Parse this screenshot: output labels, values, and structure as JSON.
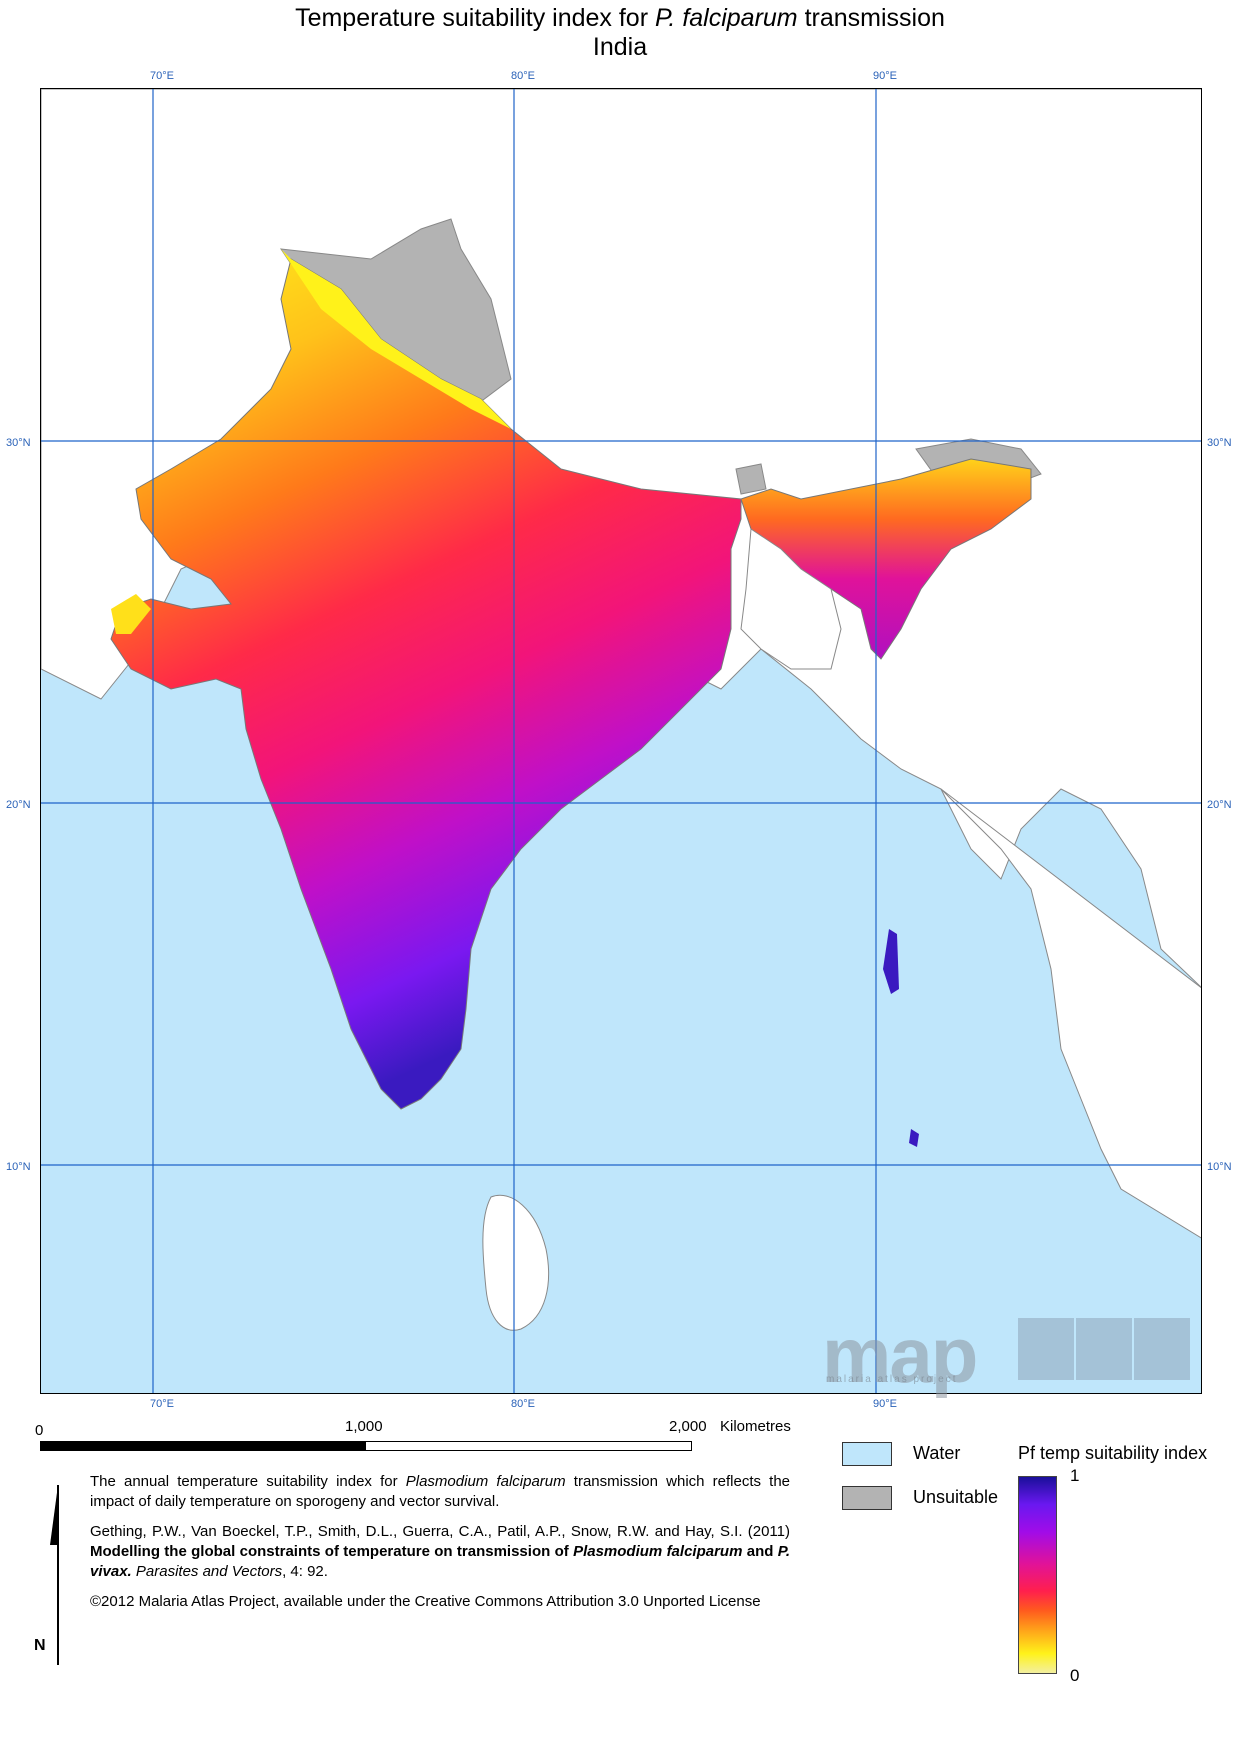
{
  "title": {
    "prefix": "Temperature suitability index for ",
    "species": "P. falciparum",
    "suffix": " transmission",
    "line2": "India"
  },
  "graticule": {
    "longitudes": [
      "70°E",
      "80°E",
      "90°E"
    ],
    "latitudes": [
      "30°N",
      "20°N",
      "10°N"
    ],
    "line_color": "#1f63c9"
  },
  "scale": {
    "start": "0",
    "mid": "1,000",
    "end": "2,000",
    "unit": "Kilometres"
  },
  "legend": {
    "water": "Water",
    "unsuitable": "Unsuitable",
    "index_title": "Pf temp suitability index",
    "max": "1",
    "min": "0",
    "water_color": "#bfe6fb",
    "unsuitable_color": "#b3b3b3"
  },
  "description": {
    "p1_a": "The annual temperature suitability index for ",
    "p1_species": "Plasmodium falciparum",
    "p1_b": " transmission which reflects the impact of daily temperature on sporogeny and vector survival.",
    "cite_authors": "Gething, P.W., Van Boeckel, T.P., Smith, D.L., Guerra, C.A., Patil, A.P., Snow, R.W. and Hay, S.I. (2011) ",
    "cite_title_a": "Modelling the global constraints of temperature on transmission of ",
    "cite_title_sp1": "Plasmodium falciparum",
    "cite_title_and": " and ",
    "cite_title_sp2": "P. vivax.",
    "cite_journal": " Parasites and Vectors",
    "cite_vol": ", 4: 92.",
    "license": "©2012 Malaria Atlas Project, available under the Creative Commons Attribution 3.0 Unported License"
  },
  "north_label": "N",
  "logo": {
    "text": "map",
    "sub": "malaria atlas project"
  }
}
